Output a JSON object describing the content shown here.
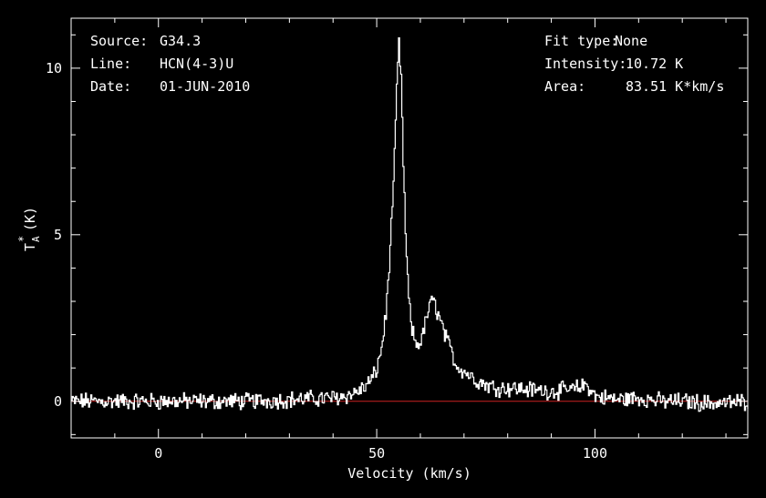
{
  "chart_data": {
    "type": "line",
    "xlabel": "Velocity (km/s)",
    "ylabel_main": "T",
    "ylabel_sub": "A",
    "ylabel_sup": "*",
    "ylabel_unit": "(K)",
    "xlim": [
      -20,
      135
    ],
    "ylim": [
      -1.1,
      11.5
    ],
    "xticks": [
      0,
      50,
      100
    ],
    "yticks": [
      0,
      5,
      10
    ],
    "grid": false,
    "baseline": 0,
    "colors": {
      "background": "#000000",
      "spectrum": "#ffffff",
      "baseline": "#cc2222",
      "axes": "#ffffff"
    },
    "series": [
      {
        "x": [
          -20,
          -10,
          0,
          10,
          20,
          30,
          40,
          44,
          47,
          49,
          50,
          51,
          52,
          53,
          54,
          54.5,
          55,
          55.5,
          56,
          56.5,
          57,
          57.5,
          58,
          59,
          60,
          61,
          62,
          63,
          64,
          65,
          66,
          67,
          68,
          70,
          72,
          74,
          76,
          78,
          80,
          85,
          90,
          95,
          98,
          100,
          105,
          110,
          115,
          120,
          125,
          130,
          135
        ],
        "y": [
          0,
          0,
          0,
          0,
          0,
          0.05,
          0.1,
          0.2,
          0.4,
          0.7,
          1.0,
          1.6,
          2.6,
          4.6,
          7.3,
          9.4,
          10.72,
          9.6,
          7.2,
          5.0,
          3.6,
          2.7,
          2.1,
          1.7,
          1.8,
          2.3,
          2.9,
          3.0,
          2.6,
          2.2,
          1.8,
          1.5,
          1.1,
          0.9,
          0.7,
          0.55,
          0.45,
          0.4,
          0.4,
          0.35,
          0.3,
          0.35,
          0.5,
          0.15,
          0.05,
          0.1,
          0,
          0,
          -0.05,
          -0.05,
          0
        ]
      }
    ]
  },
  "header": {
    "left": [
      {
        "key": "Source:",
        "value": "G34.3"
      },
      {
        "key": "Line:",
        "value": "HCN(4-3)U"
      },
      {
        "key": "Date:",
        "value": "01-JUN-2010"
      }
    ],
    "right": [
      {
        "key": "Fit type:",
        "value": "None"
      },
      {
        "key": "Intensity:",
        "value": "10.72 K"
      },
      {
        "key": "Area:",
        "value": "83.51 K*km/s"
      }
    ]
  }
}
